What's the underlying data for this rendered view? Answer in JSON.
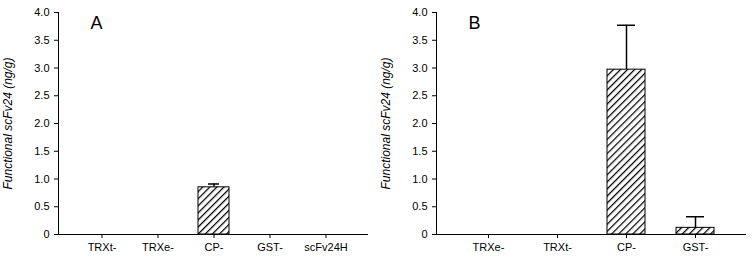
{
  "chart_data": [
    {
      "type": "bar",
      "title": "A",
      "ylabel": "Functional scFv24 (ng/g)",
      "categories": [
        "TRXt-",
        "TRXe-",
        "CP-",
        "GST-",
        "scFv24H"
      ],
      "values": [
        0,
        0,
        0.85,
        0,
        0
      ],
      "errors": [
        0,
        0,
        0.06,
        0,
        0
      ],
      "color": "#000000",
      "ylim": [
        0,
        4
      ],
      "yticks": [
        0,
        0.5,
        {
          "value": 1,
          "label": "1.0"
        },
        1.5,
        {
          "value": 2,
          "label": "2.0"
        },
        2.5,
        {
          "value": 3,
          "label": "3.0"
        },
        3.5,
        {
          "value": 4,
          "label": "4.0"
        }
      ]
    },
    {
      "type": "bar",
      "title": "B",
      "ylabel": "Functional scFv24 (ng/g)",
      "categories": [
        "TRXe-",
        "TRXt-",
        "CP-",
        "GST-"
      ],
      "values": [
        0,
        0,
        2.97,
        0.12
      ],
      "errors": [
        0,
        0,
        0.8,
        0.2
      ],
      "color": "#000000",
      "ylim": [
        0,
        4
      ],
      "yticks": [
        0,
        0.5,
        {
          "value": 1,
          "label": "1.0"
        },
        1.5,
        {
          "value": 2,
          "label": "2.0"
        },
        2.5,
        {
          "value": 3,
          "label": "3.0"
        },
        3.5,
        {
          "value": 4,
          "label": "4.0"
        }
      ]
    }
  ]
}
